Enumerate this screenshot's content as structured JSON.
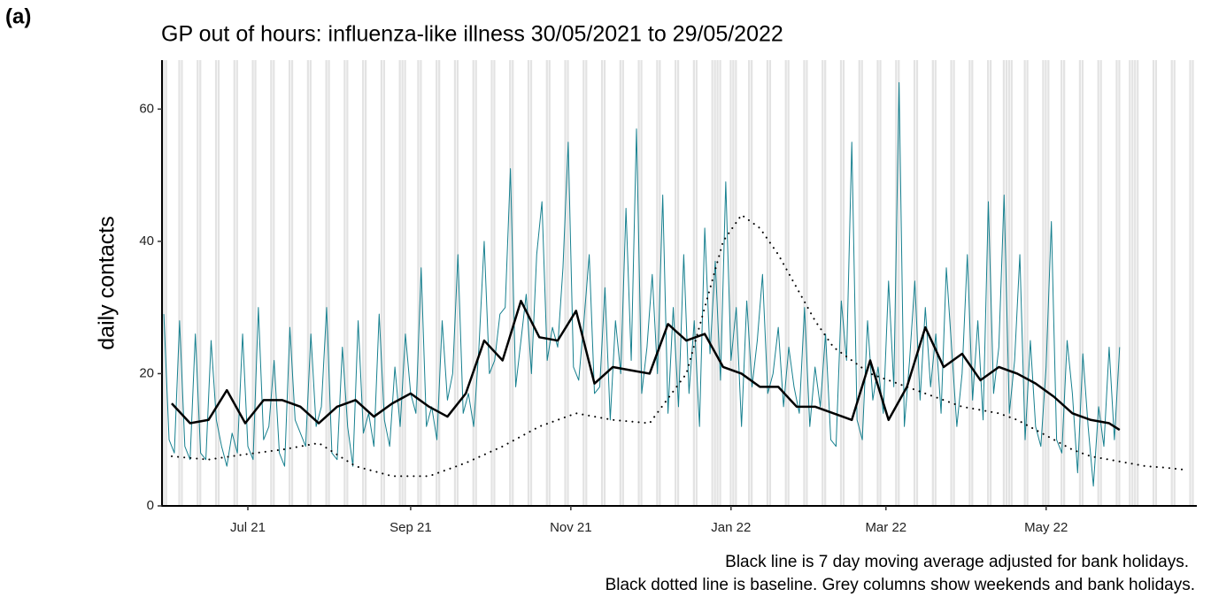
{
  "chart_data": {
    "type": "line",
    "panel_label": "(a)",
    "title": "GP out of hours: influenza-like illness 30/05/2021 to 29/05/2022",
    "y_label": "daily contacts",
    "caption": [
      "Black line is 7 day moving average adjusted for bank holidays.",
      "Black dotted line is baseline. Grey columns show weekends and bank holidays."
    ],
    "xlim": [
      -0.7,
      393.4
    ],
    "ylim": [
      0,
      67.4
    ],
    "xticks": [
      {
        "value": 32,
        "label": "Jul 21"
      },
      {
        "value": 94,
        "label": "Sep 21"
      },
      {
        "value": 155,
        "label": "Nov 21"
      },
      {
        "value": 216,
        "label": "Jan 22"
      },
      {
        "value": 275,
        "label": "Mar 22"
      },
      {
        "value": 336,
        "label": "May 22"
      }
    ],
    "yticks": [
      0,
      20,
      40,
      60
    ],
    "shade_color": "#e3e3e3",
    "shaded_days": [
      0,
      1,
      6,
      7,
      13,
      14,
      20,
      21,
      27,
      28,
      34,
      35,
      41,
      42,
      48,
      49,
      55,
      56,
      62,
      63,
      69,
      70,
      76,
      77,
      83,
      84,
      90,
      91,
      92,
      97,
      98,
      104,
      105,
      111,
      112,
      118,
      119,
      125,
      126,
      132,
      133,
      139,
      140,
      146,
      147,
      153,
      154,
      160,
      161,
      167,
      168,
      174,
      175,
      181,
      182,
      188,
      189,
      195,
      196,
      202,
      203,
      209,
      210,
      211,
      212,
      216,
      217,
      218,
      223,
      224,
      230,
      231,
      237,
      238,
      244,
      245,
      251,
      252,
      258,
      259,
      265,
      266,
      272,
      273,
      279,
      280,
      286,
      287,
      293,
      294,
      300,
      301,
      307,
      308,
      314,
      315,
      320,
      321,
      322,
      323,
      328,
      329,
      335,
      336,
      337,
      342,
      343,
      349,
      350,
      356,
      357,
      363,
      364,
      368,
      369,
      370,
      371,
      377,
      378,
      384,
      385,
      391,
      392
    ],
    "series": [
      {
        "color": "#17808f",
        "line_width": 1,
        "line_style": "solid",
        "x": [
          0,
          2,
          4,
          6,
          8,
          10,
          12,
          14,
          16,
          18,
          20,
          22,
          24,
          26,
          28,
          30,
          32,
          34,
          36,
          38,
          40,
          42,
          44,
          46,
          48,
          50,
          52,
          54,
          56,
          58,
          60,
          62,
          64,
          66,
          68,
          70,
          72,
          74,
          76,
          78,
          80,
          82,
          84,
          86,
          88,
          90,
          92,
          94,
          96,
          98,
          100,
          102,
          104,
          106,
          108,
          110,
          112,
          114,
          116,
          118,
          120,
          122,
          124,
          126,
          128,
          130,
          132,
          134,
          136,
          138,
          140,
          142,
          144,
          146,
          148,
          150,
          152,
          154,
          156,
          158,
          160,
          162,
          164,
          166,
          168,
          170,
          172,
          174,
          176,
          178,
          180,
          182,
          184,
          186,
          188,
          190,
          192,
          194,
          196,
          198,
          200,
          202,
          204,
          206,
          208,
          210,
          212,
          214,
          216,
          218,
          220,
          222,
          224,
          226,
          228,
          230,
          232,
          234,
          236,
          238,
          240,
          242,
          244,
          246,
          248,
          250,
          252,
          254,
          256,
          258,
          260,
          262,
          264,
          266,
          268,
          270,
          272,
          274,
          276,
          278,
          280,
          282,
          284,
          286,
          288,
          290,
          292,
          294,
          296,
          298,
          300,
          302,
          304,
          306,
          308,
          310,
          312,
          314,
          316,
          318,
          320,
          322,
          324,
          326,
          328,
          330,
          332,
          334,
          336,
          338,
          340,
          342,
          344,
          346,
          348,
          350,
          352,
          354,
          356,
          358,
          360,
          362,
          364
        ],
        "values": [
          29,
          10,
          8,
          28,
          9,
          7,
          26,
          8,
          7,
          25,
          13,
          9,
          6,
          11,
          8,
          26,
          9,
          7,
          30,
          10,
          12,
          22,
          8,
          6,
          27,
          13,
          11,
          9,
          26,
          12,
          15,
          30,
          8,
          7,
          24,
          12,
          6,
          28,
          11,
          14,
          9,
          29,
          13,
          9,
          21,
          12,
          26,
          17,
          14,
          36,
          12,
          15,
          10,
          28,
          16,
          20,
          38,
          14,
          17,
          12,
          24,
          40,
          20,
          22,
          29,
          30,
          51,
          18,
          25,
          32,
          20,
          38,
          46,
          22,
          27,
          24,
          36,
          55,
          21,
          19,
          28,
          38,
          17,
          18,
          33,
          13,
          28,
          20,
          45,
          22,
          57,
          17,
          24,
          35,
          20,
          47,
          14,
          30,
          15,
          38,
          17,
          28,
          12,
          42,
          23,
          37,
          19,
          49,
          22,
          30,
          12,
          31,
          18,
          25,
          35,
          17,
          20,
          27,
          15,
          24,
          18,
          14,
          30,
          12,
          21,
          15,
          26,
          10,
          9,
          31,
          22,
          55,
          13,
          10,
          28,
          16,
          21,
          14,
          34,
          18,
          64,
          12,
          22,
          34,
          16,
          30,
          18,
          26,
          14,
          36,
          24,
          12,
          20,
          38,
          16,
          28,
          13,
          46,
          17,
          24,
          47,
          14,
          22,
          38,
          10,
          25,
          12,
          9,
          21,
          43,
          10,
          8,
          25,
          17,
          5,
          23,
          12,
          3,
          15,
          9,
          24,
          10,
          24
        ]
      },
      {
        "color": "#000000",
        "line_width": 2.5,
        "line_style": "solid",
        "x": [
          3,
          10,
          17,
          24,
          31,
          38,
          45,
          52,
          59,
          66,
          73,
          80,
          87,
          94,
          101,
          108,
          115,
          122,
          129,
          136,
          143,
          150,
          157,
          164,
          171,
          178,
          185,
          192,
          199,
          206,
          213,
          220,
          227,
          234,
          241,
          248,
          255,
          262,
          269,
          276,
          283,
          290,
          297,
          304,
          311,
          318,
          325,
          332,
          339,
          346,
          353,
          360,
          364
        ],
        "values": [
          15.5,
          12.5,
          13,
          17.5,
          12.5,
          16,
          16,
          15,
          12.5,
          15,
          16,
          13.5,
          15.5,
          17,
          15,
          13.5,
          17,
          25,
          22,
          31,
          25.5,
          25,
          29.5,
          18.5,
          21,
          20.5,
          20,
          27.5,
          25,
          26,
          21,
          20,
          18,
          18,
          15,
          15,
          14,
          13,
          22,
          13,
          18,
          27,
          21,
          23,
          19,
          21,
          20,
          18.5,
          16.5,
          14,
          13,
          12.5,
          11.5
        ]
      },
      {
        "color": "#000000",
        "line_width": 2,
        "line_style": "dotted",
        "x": [
          3,
          17,
          31,
          45,
          59,
          73,
          87,
          101,
          115,
          129,
          143,
          157,
          171,
          185,
          199,
          206,
          213,
          220,
          227,
          234,
          241,
          248,
          255,
          262,
          269,
          276,
          283,
          290,
          297,
          304,
          311,
          318,
          325,
          332,
          339,
          346,
          353,
          360,
          367,
          374,
          381,
          388
        ],
        "values": [
          7.5,
          7,
          7.8,
          8.5,
          9.5,
          6,
          4.5,
          4.5,
          6.5,
          9,
          12,
          14,
          13,
          12.5,
          20,
          30,
          40,
          44,
          42,
          38,
          33,
          28,
          24,
          22,
          20,
          19,
          18,
          17,
          16,
          15,
          14.5,
          14,
          13,
          11.5,
          10,
          8.5,
          7.5,
          7,
          6.5,
          6,
          5.8,
          5.5
        ]
      }
    ]
  }
}
